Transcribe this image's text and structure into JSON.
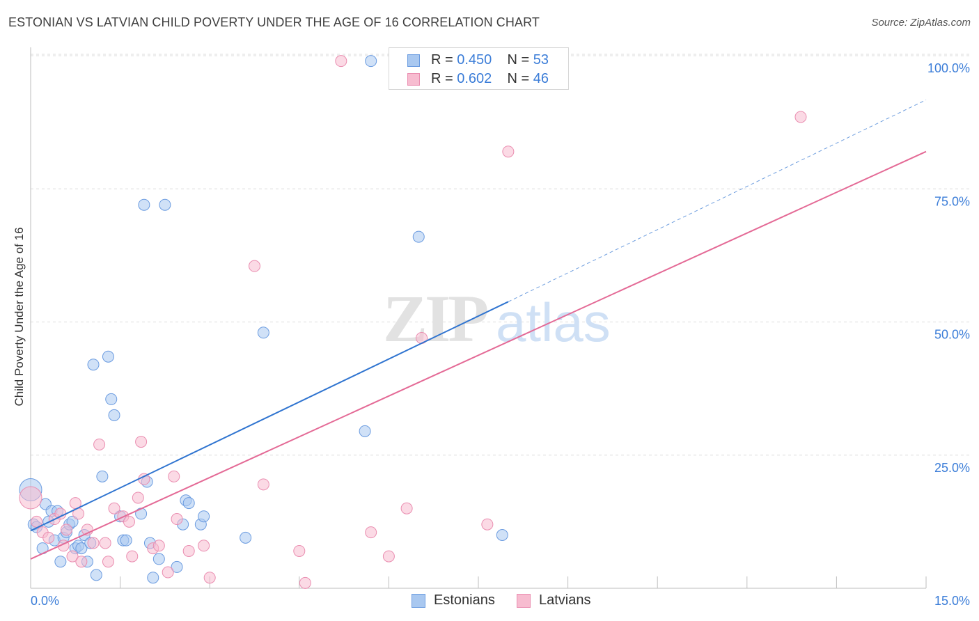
{
  "title": "ESTONIAN VS LATVIAN CHILD POVERTY UNDER THE AGE OF 16 CORRELATION CHART",
  "source": "Source: ZipAtlas.com",
  "watermark": "ZIPatlas",
  "colors": {
    "estonians_fill": "#a9c8f0",
    "estonians_stroke": "#6a9be0",
    "estonians_line": "#2f74d0",
    "latvians_fill": "#f7bcd0",
    "latvians_stroke": "#ea8db0",
    "latvians_line": "#e46a96",
    "tick_label": "#3b7dd8"
  },
  "legend": {
    "estonians": {
      "r_label": "R = ",
      "r_value": "0.450",
      "n_label": "N = ",
      "n_value": "53"
    },
    "latvians": {
      "r_label": "R = ",
      "r_value": "0.602",
      "n_label": "N = ",
      "n_value": "46"
    }
  },
  "chart_data": {
    "type": "scatter",
    "title": "ESTONIAN VS LATVIAN CHILD POVERTY UNDER THE AGE OF 16 CORRELATION CHART",
    "xlabel": "",
    "ylabel": "Child Poverty Under the Age of 16",
    "xlim": [
      0,
      15
    ],
    "ylim": [
      0,
      100
    ],
    "x_tick_labels": [
      "0.0%",
      "15.0%"
    ],
    "y_ticks": [
      25,
      50,
      75,
      100
    ],
    "y_tick_labels": [
      "25.0%",
      "50.0%",
      "75.0%",
      "100.0%"
    ],
    "grid": true,
    "legend_position": "top-center and bottom",
    "series": [
      {
        "name": "Estonians",
        "r": 0.45,
        "n": 53,
        "trend": {
          "x": [
            0,
            8.0
          ],
          "y": [
            10.8,
            53.8
          ],
          "dashed_extension_to": [
            15,
            91.7
          ]
        },
        "points": [
          [
            0.0,
            18.5
          ],
          [
            0.05,
            12.0
          ],
          [
            0.1,
            11.5
          ],
          [
            0.2,
            7.5
          ],
          [
            0.25,
            15.8
          ],
          [
            0.3,
            12.5
          ],
          [
            0.35,
            14.5
          ],
          [
            0.4,
            9.0
          ],
          [
            0.45,
            14.5
          ],
          [
            0.5,
            5.0
          ],
          [
            0.55,
            9.5
          ],
          [
            0.6,
            10.5
          ],
          [
            0.65,
            12.0
          ],
          [
            0.7,
            12.5
          ],
          [
            0.75,
            7.5
          ],
          [
            0.8,
            8.0
          ],
          [
            0.85,
            7.5
          ],
          [
            0.9,
            10.0
          ],
          [
            0.95,
            5.0
          ],
          [
            1.0,
            8.5
          ],
          [
            1.05,
            42.0
          ],
          [
            1.1,
            2.5
          ],
          [
            1.2,
            21.0
          ],
          [
            1.3,
            43.5
          ],
          [
            1.35,
            35.5
          ],
          [
            1.4,
            32.5
          ],
          [
            1.5,
            13.5
          ],
          [
            1.55,
            9.0
          ],
          [
            1.6,
            9.0
          ],
          [
            1.85,
            14.0
          ],
          [
            1.9,
            72.0
          ],
          [
            1.95,
            20.0
          ],
          [
            2.0,
            8.5
          ],
          [
            2.05,
            2.0
          ],
          [
            2.15,
            5.5
          ],
          [
            2.25,
            72.0
          ],
          [
            2.45,
            4.0
          ],
          [
            2.55,
            12.0
          ],
          [
            2.6,
            16.5
          ],
          [
            2.65,
            16.0
          ],
          [
            2.85,
            12.0
          ],
          [
            2.9,
            13.5
          ],
          [
            3.6,
            9.5
          ],
          [
            3.9,
            48.0
          ],
          [
            5.6,
            29.5
          ],
          [
            5.7,
            99.0
          ],
          [
            6.5,
            66.0
          ],
          [
            7.9,
            10.0
          ]
        ]
      },
      {
        "name": "Latvians",
        "r": 0.602,
        "n": 46,
        "trend": {
          "x": [
            0,
            15.0
          ],
          "y": [
            5.5,
            82.0
          ]
        },
        "points": [
          [
            0.0,
            17.0
          ],
          [
            0.1,
            12.5
          ],
          [
            0.2,
            10.5
          ],
          [
            0.3,
            9.5
          ],
          [
            0.4,
            13.0
          ],
          [
            0.5,
            14.0
          ],
          [
            0.55,
            8.0
          ],
          [
            0.6,
            11.0
          ],
          [
            0.7,
            6.0
          ],
          [
            0.75,
            16.0
          ],
          [
            0.8,
            14.0
          ],
          [
            0.85,
            5.0
          ],
          [
            0.95,
            11.0
          ],
          [
            1.05,
            8.5
          ],
          [
            1.15,
            27.0
          ],
          [
            1.25,
            8.5
          ],
          [
            1.3,
            5.0
          ],
          [
            1.4,
            15.0
          ],
          [
            1.55,
            13.5
          ],
          [
            1.65,
            12.5
          ],
          [
            1.7,
            6.0
          ],
          [
            1.8,
            17.0
          ],
          [
            1.85,
            27.5
          ],
          [
            1.9,
            20.5
          ],
          [
            2.05,
            7.5
          ],
          [
            2.15,
            8.0
          ],
          [
            2.3,
            3.0
          ],
          [
            2.4,
            21.0
          ],
          [
            2.45,
            13.0
          ],
          [
            2.65,
            7.0
          ],
          [
            2.9,
            8.0
          ],
          [
            3.0,
            2.0
          ],
          [
            3.75,
            60.5
          ],
          [
            3.9,
            19.5
          ],
          [
            4.5,
            7.0
          ],
          [
            4.6,
            1.0
          ],
          [
            5.2,
            99.0
          ],
          [
            5.7,
            10.5
          ],
          [
            6.0,
            6.0
          ],
          [
            6.3,
            15.0
          ],
          [
            6.55,
            47.0
          ],
          [
            7.65,
            12.0
          ],
          [
            8.0,
            82.0
          ],
          [
            12.9,
            88.5
          ]
        ]
      }
    ]
  }
}
